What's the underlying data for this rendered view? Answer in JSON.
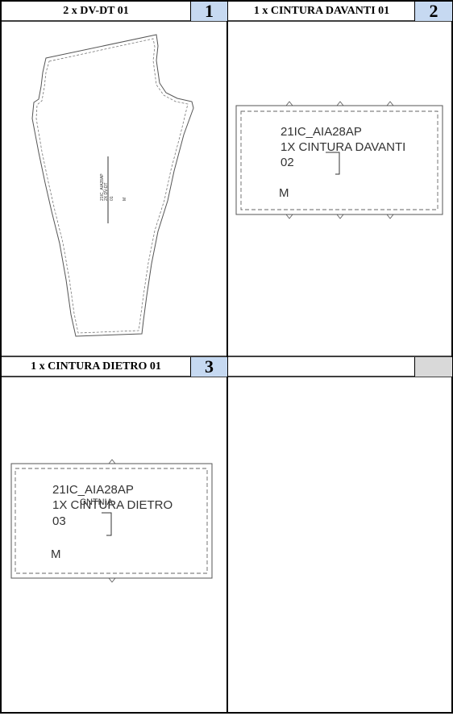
{
  "panels": [
    {
      "title": "2 x DV-DT 01",
      "number": "1",
      "piece_label": {
        "style": "21IC_AIA28AP",
        "qty_name": "2X DV-DT",
        "code": "01",
        "size": "M"
      }
    },
    {
      "title": "1 x CINTURA DAVANTI 01",
      "number": "2",
      "piece_label": {
        "style": "21IC_AIA28AP",
        "qty_name": "1X CINTURA DAVANTI",
        "code": "02",
        "size": "M"
      }
    },
    {
      "title": "1 x CINTURA DIETRO 01",
      "number": "3",
      "piece_label": {
        "style": "21IC_AIA28AP",
        "qty_name": "1X CINTURA DIETRO",
        "code": "03",
        "size": "M",
        "overprint": "CNTNIA"
      }
    },
    {
      "title": "",
      "number": "",
      "piece_label": null
    }
  ]
}
